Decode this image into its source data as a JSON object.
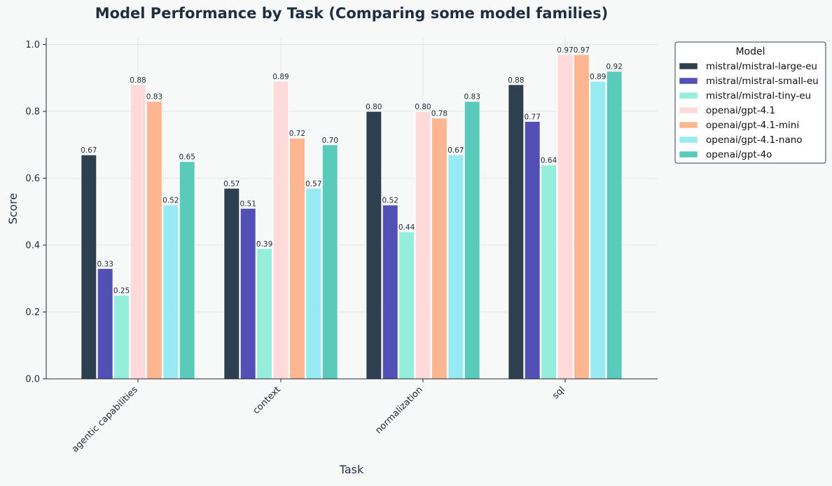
{
  "chart_data": {
    "type": "bar",
    "title": "Model Performance by Task (Comparing some model families)",
    "xlabel": "Task",
    "ylabel": "Score",
    "ylim": [
      0,
      1.0
    ],
    "yticks": [
      0.0,
      0.2,
      0.4,
      0.6,
      0.8,
      1.0
    ],
    "ytick_labels": [
      "0.0",
      "0.2",
      "0.4",
      "0.6",
      "0.8",
      "1.0"
    ],
    "grid": true,
    "legend": {
      "title": "Model",
      "placement": "outside-upper-right"
    },
    "categories": [
      "agentic capabilities",
      "context",
      "normalization",
      "sql"
    ],
    "series": [
      {
        "name": "mistral/mistral-large-eu",
        "color": "#2e3f50",
        "values": [
          0.67,
          0.57,
          0.8,
          0.88
        ],
        "labels": [
          "0.67",
          "0.57",
          "0.80",
          "0.88"
        ]
      },
      {
        "name": "mistral/mistral-small-eu",
        "color": "#524fb5",
        "values": [
          0.33,
          0.51,
          0.52,
          0.77
        ],
        "labels": [
          "0.33",
          "0.51",
          "0.52",
          "0.77"
        ]
      },
      {
        "name": "mistral/mistral-tiny-eu",
        "color": "#95eedc",
        "values": [
          0.25,
          0.39,
          0.44,
          0.64
        ],
        "labels": [
          "0.25",
          "0.39",
          "0.44",
          "0.64"
        ]
      },
      {
        "name": "openai/gpt-4.1",
        "color": "#ffdadb",
        "values": [
          0.88,
          0.89,
          0.8,
          0.97
        ],
        "labels": [
          "0.88",
          "0.89",
          "0.80",
          "0.97"
        ]
      },
      {
        "name": "openai/gpt-4.1-mini",
        "color": "#fdb68f",
        "values": [
          0.83,
          0.72,
          0.78,
          0.97
        ],
        "labels": [
          "0.83",
          "0.72",
          "0.78",
          "0.97"
        ]
      },
      {
        "name": "openai/gpt-4.1-nano",
        "color": "#97eaf1",
        "values": [
          0.52,
          0.57,
          0.67,
          0.89
        ],
        "labels": [
          "0.52",
          "0.57",
          "0.67",
          "0.89"
        ]
      },
      {
        "name": "openai/gpt-4o",
        "color": "#5acbbb",
        "values": [
          0.65,
          0.7,
          0.83,
          0.92
        ],
        "labels": [
          "0.65",
          "0.70",
          "0.83",
          "0.92"
        ]
      }
    ]
  }
}
